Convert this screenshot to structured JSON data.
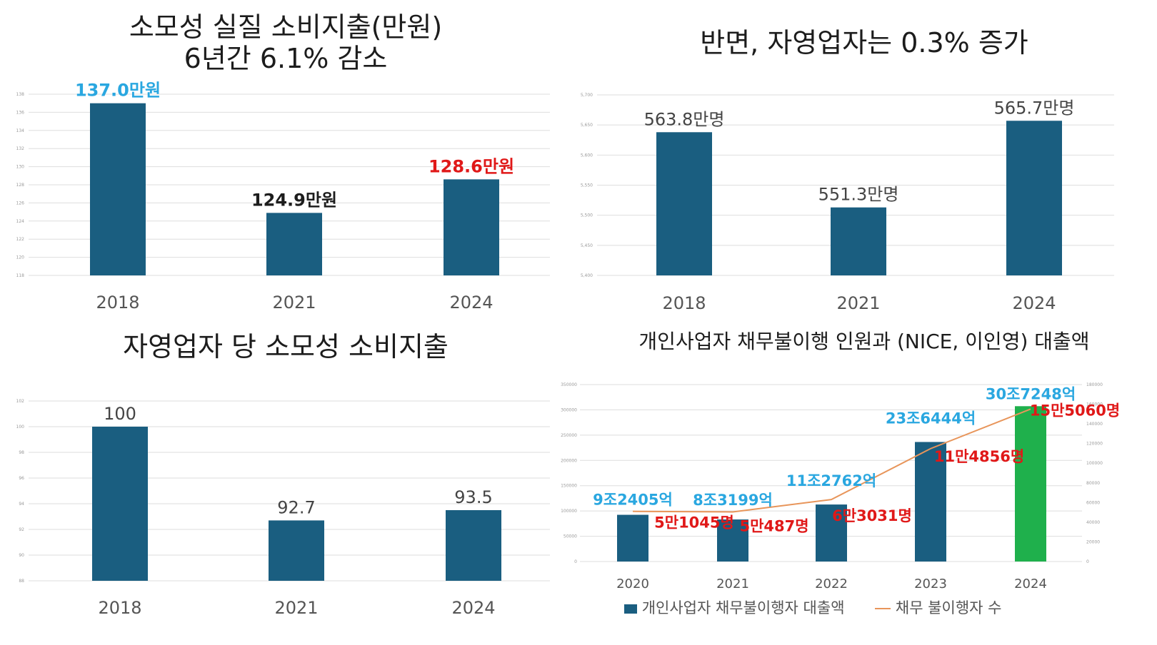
{
  "colors": {
    "bar": "#1a5e80",
    "bar_highlight": "#1fb04c",
    "line": "#e8955a",
    "grid": "#dedede",
    "label_cyan": "#2aa7e0",
    "label_red": "#e01818",
    "label_black": "#1c1c1c",
    "label_gray": "#444444"
  },
  "chart_data": [
    {
      "type": "bar",
      "title_line1": "소모성 실질 소비지출(만원)",
      "title_line2": "6년간 6.1% 감소",
      "categories": [
        "2018",
        "2021",
        "2024"
      ],
      "values": [
        137.0,
        124.9,
        128.6
      ],
      "data_labels": [
        "137.0만원",
        "124.9만원",
        "128.6만원"
      ],
      "label_colors": [
        "label_cyan",
        "label_black",
        "label_red"
      ],
      "ylim": [
        118,
        138
      ],
      "yticks": [
        "118",
        "120",
        "122",
        "124",
        "126",
        "128",
        "130",
        "132",
        "134",
        "136",
        "138"
      ],
      "grid": true
    },
    {
      "type": "bar",
      "title": "반면, 자영업자는 0.3% 증가",
      "categories": [
        "2018",
        "2021",
        "2024"
      ],
      "values": [
        563.8,
        551.3,
        565.7
      ],
      "data_labels": [
        "563.8만명",
        "551.3만명",
        "565.7만명"
      ],
      "ylim": [
        540,
        570
      ],
      "yticks": [
        "5,400",
        "5,450",
        "5,500",
        "5,550",
        "5,600",
        "5,650",
        "5,700"
      ],
      "grid": true
    },
    {
      "type": "bar",
      "title": "자영업자 당 소모성 소비지출",
      "categories": [
        "2018",
        "2021",
        "2024"
      ],
      "values": [
        100,
        92.7,
        93.5
      ],
      "data_labels": [
        "100",
        "92.7",
        "93.5"
      ],
      "ylim": [
        88,
        102
      ],
      "yticks": [
        "88",
        "90",
        "92",
        "94",
        "96",
        "98",
        "100",
        "102"
      ],
      "grid": true
    },
    {
      "type": "bar",
      "title": "개인사업자 채무불이행 인원과 (NICE, 이인영) 대출액",
      "categories": [
        "2020",
        "2021",
        "2022",
        "2023",
        "2024"
      ],
      "series": [
        {
          "name": "개인사업자 채무불이행자 대출액",
          "type": "bar",
          "axis": "left",
          "values": [
            92405,
            83199,
            112762,
            236444,
            307248
          ],
          "data_labels": [
            "9조2405억",
            "8조3199억",
            "11조2762억",
            "23조6444억",
            "30조7248억"
          ]
        },
        {
          "name": "채무 불이행자 수",
          "type": "line",
          "axis": "right",
          "values": [
            51045,
            50487,
            63031,
            114856,
            155060
          ],
          "data_labels": [
            "5만1045명",
            "5만487명",
            "6만3031명",
            "11만4856명",
            "15만5060명"
          ]
        }
      ],
      "ylim_left": [
        0,
        350000
      ],
      "yticks_left": [
        "0",
        "50000",
        "100000",
        "150000",
        "200000",
        "250000",
        "300000",
        "350000"
      ],
      "ylim_right": [
        0,
        180000
      ],
      "yticks_right": [
        "0",
        "20000",
        "40000",
        "60000",
        "80000",
        "100000",
        "120000",
        "140000",
        "160000",
        "180000"
      ],
      "highlight_index": 4,
      "legend_position": "bottom",
      "grid": true
    }
  ]
}
